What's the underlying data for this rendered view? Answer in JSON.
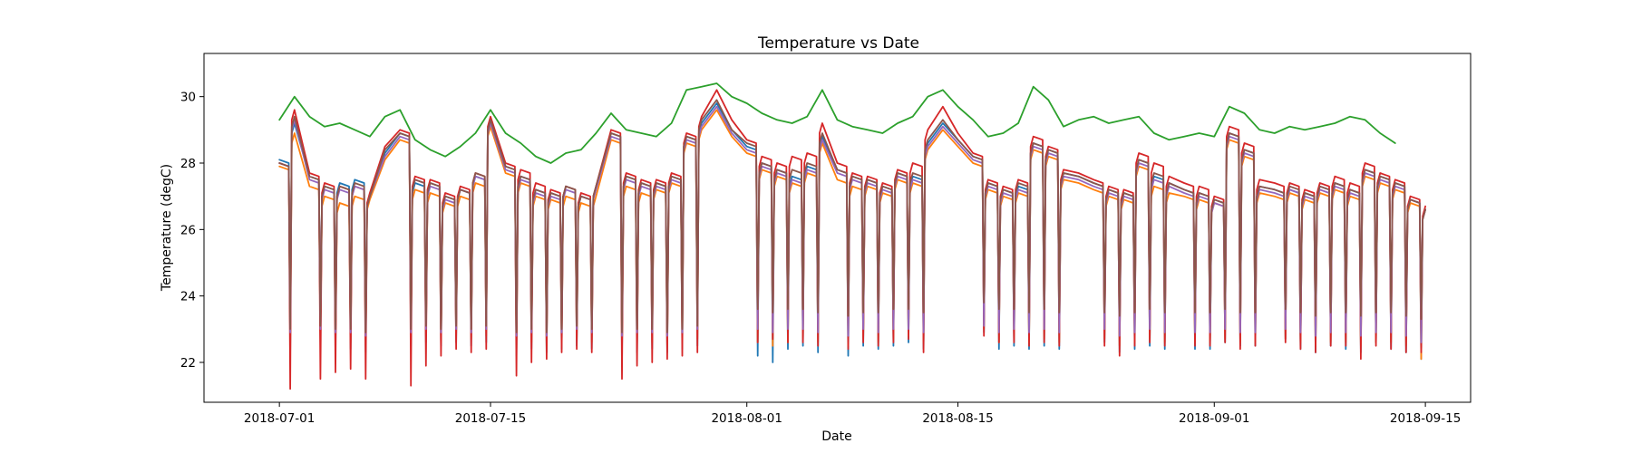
{
  "chart_data": {
    "type": "line",
    "title": "Temperature vs Date",
    "xlabel": "Date",
    "ylabel": "Temperature (degC)",
    "xlim": [
      "2018-06-26",
      "2018-09-18"
    ],
    "ylim": [
      20.8,
      31.3
    ],
    "grid": false,
    "x_ticks": [
      "2018-07-01",
      "2018-07-15",
      "2018-08-01",
      "2018-08-15",
      "2018-09-01",
      "2018-09-15"
    ],
    "y_ticks": [
      22,
      24,
      26,
      28,
      30
    ],
    "colors": [
      "#1f77b4",
      "#ff7f0e",
      "#2ca02c",
      "#d62728",
      "#9467bd",
      "#8c564b"
    ],
    "x": [
      "2018-07-01",
      "2018-07-02",
      "2018-07-03",
      "2018-07-04",
      "2018-07-05",
      "2018-07-06",
      "2018-07-07",
      "2018-07-08",
      "2018-07-09",
      "2018-07-10",
      "2018-07-11",
      "2018-07-12",
      "2018-07-13",
      "2018-07-14",
      "2018-07-15",
      "2018-07-16",
      "2018-07-17",
      "2018-07-18",
      "2018-07-19",
      "2018-07-20",
      "2018-07-21",
      "2018-07-22",
      "2018-07-23",
      "2018-07-24",
      "2018-07-25",
      "2018-07-26",
      "2018-07-27",
      "2018-07-28",
      "2018-07-29",
      "2018-07-30",
      "2018-07-31",
      "2018-08-01",
      "2018-08-02",
      "2018-08-03",
      "2018-08-04",
      "2018-08-05",
      "2018-08-06",
      "2018-08-07",
      "2018-08-08",
      "2018-08-09",
      "2018-08-10",
      "2018-08-11",
      "2018-08-12",
      "2018-08-13",
      "2018-08-14",
      "2018-08-15",
      "2018-08-16",
      "2018-08-17",
      "2018-08-18",
      "2018-08-19",
      "2018-08-20",
      "2018-08-21",
      "2018-08-22",
      "2018-08-23",
      "2018-08-24",
      "2018-08-25",
      "2018-08-26",
      "2018-08-27",
      "2018-08-28",
      "2018-08-29",
      "2018-08-30",
      "2018-08-31",
      "2018-09-01",
      "2018-09-02",
      "2018-09-03",
      "2018-09-04",
      "2018-09-05",
      "2018-09-06",
      "2018-09-07",
      "2018-09-08",
      "2018-09-09",
      "2018-09-10",
      "2018-09-11",
      "2018-09-12",
      "2018-09-13",
      "2018-09-14",
      "2018-09-15"
    ],
    "series": [
      {
        "values": [
          28.1,
          29.2,
          27.6,
          27.3,
          27.4,
          27.5,
          27.0,
          28.3,
          28.9,
          27.4,
          27.4,
          27.0,
          27.2,
          27.6,
          29.3,
          27.9,
          27.6,
          27.2,
          27.1,
          27.3,
          27.0,
          27.3,
          28.9,
          27.6,
          27.4,
          27.4,
          27.6,
          28.8,
          29.2,
          29.8,
          29.0,
          28.5,
          28.0,
          27.8,
          27.6,
          27.9,
          28.8,
          27.8,
          27.6,
          27.5,
          27.3,
          27.7,
          27.6,
          28.6,
          29.2,
          28.7,
          28.2,
          27.4,
          27.2,
          27.3,
          28.6,
          28.4,
          27.7,
          27.6,
          27.4,
          27.2,
          27.1,
          28.1,
          27.6,
          27.4,
          27.2,
          27.1,
          26.9,
          28.9,
          28.4,
          27.3,
          27.2,
          27.2,
          27.1,
          27.3,
          27.4,
          27.2,
          27.8,
          27.6,
          27.4,
          26.9,
          26.6
        ]
      },
      {
        "values": [
          27.9,
          28.9,
          27.3,
          27.0,
          26.8,
          27.0,
          26.9,
          28.1,
          28.7,
          27.2,
          27.1,
          26.8,
          27.0,
          27.4,
          29.1,
          27.7,
          27.4,
          27.0,
          26.9,
          27.0,
          26.8,
          27.0,
          28.7,
          27.3,
          27.1,
          27.2,
          27.4,
          28.6,
          29.0,
          29.6,
          28.8,
          28.3,
          27.8,
          27.6,
          27.4,
          27.7,
          28.6,
          27.5,
          27.3,
          27.3,
          27.1,
          27.5,
          27.4,
          28.4,
          29.0,
          28.5,
          28.0,
          27.2,
          27.0,
          27.1,
          28.4,
          28.2,
          27.5,
          27.4,
          27.2,
          27.0,
          26.9,
          27.9,
          27.3,
          27.1,
          27.0,
          26.9,
          26.8,
          28.7,
          28.2,
          27.1,
          27.0,
          27.1,
          26.9,
          27.1,
          27.2,
          27.0,
          27.6,
          27.4,
          27.2,
          26.8,
          26.6
        ]
      },
      {
        "values": [
          29.3,
          30.0,
          29.4,
          29.1,
          29.2,
          29.0,
          28.8,
          29.4,
          29.6,
          28.7,
          28.4,
          28.2,
          28.5,
          28.9,
          29.6,
          28.9,
          28.6,
          28.2,
          28.0,
          28.3,
          28.4,
          28.9,
          29.5,
          29.0,
          28.9,
          28.8,
          29.2,
          30.2,
          30.3,
          30.4,
          30.0,
          29.8,
          29.5,
          29.3,
          29.2,
          29.4,
          30.2,
          29.3,
          29.1,
          29.0,
          28.9,
          29.2,
          29.4,
          30.0,
          30.2,
          29.7,
          29.3,
          28.8,
          28.9,
          29.2,
          30.3,
          29.9,
          29.1,
          29.3,
          29.4,
          29.2,
          29.3,
          29.4,
          28.9,
          28.7,
          28.8,
          28.9,
          28.8,
          29.7,
          29.5,
          29.0,
          28.9,
          29.1,
          29.0,
          29.1,
          29.2,
          29.4,
          29.3,
          28.9,
          28.6,
          null,
          null
        ]
      },
      {
        "values": [
          28.0,
          29.6,
          27.7,
          27.4,
          27.3,
          27.3,
          27.1,
          28.5,
          29.0,
          27.6,
          27.5,
          27.1,
          27.3,
          27.7,
          29.4,
          28.0,
          27.8,
          27.4,
          27.2,
          27.3,
          27.1,
          27.3,
          29.0,
          27.7,
          27.5,
          27.5,
          27.7,
          28.9,
          29.4,
          30.2,
          29.3,
          28.7,
          28.2,
          28.0,
          28.2,
          28.3,
          29.2,
          28.0,
          27.7,
          27.6,
          27.4,
          27.8,
          28.0,
          29.0,
          29.7,
          28.9,
          28.3,
          27.5,
          27.3,
          27.5,
          28.8,
          28.5,
          27.8,
          27.7,
          27.5,
          27.3,
          27.2,
          28.3,
          28.0,
          27.6,
          27.4,
          27.3,
          27.0,
          29.1,
          28.6,
          27.5,
          27.4,
          27.4,
          27.2,
          27.4,
          27.6,
          27.4,
          28.0,
          27.7,
          27.5,
          27.0,
          26.7
        ]
      },
      {
        "values": [
          28.0,
          29.3,
          27.5,
          27.2,
          27.2,
          27.3,
          27.0,
          28.2,
          28.8,
          27.5,
          27.3,
          26.9,
          27.2,
          27.6,
          29.2,
          27.8,
          27.5,
          27.1,
          27.0,
          27.2,
          27.0,
          27.2,
          28.8,
          27.5,
          27.3,
          27.3,
          27.5,
          28.7,
          29.1,
          29.7,
          28.9,
          28.4,
          27.9,
          27.7,
          27.5,
          27.8,
          28.7,
          27.7,
          27.5,
          27.4,
          27.2,
          27.6,
          27.5,
          28.5,
          29.1,
          28.6,
          28.1,
          27.3,
          27.1,
          27.2,
          28.5,
          28.3,
          27.6,
          27.5,
          27.3,
          27.1,
          27.0,
          28.0,
          27.5,
          27.3,
          27.1,
          27.0,
          26.8,
          28.8,
          28.3,
          27.2,
          27.1,
          27.2,
          27.0,
          27.2,
          27.3,
          27.1,
          27.7,
          27.5,
          27.3,
          26.9,
          26.6
        ]
      },
      {
        "values": [
          28.0,
          29.4,
          27.6,
          27.3,
          27.3,
          27.4,
          27.0,
          28.4,
          28.9,
          27.5,
          27.4,
          27.0,
          27.2,
          27.7,
          29.3,
          27.9,
          27.6,
          27.2,
          27.1,
          27.3,
          27.0,
          27.3,
          28.9,
          27.6,
          27.4,
          27.4,
          27.6,
          28.8,
          29.3,
          29.9,
          29.0,
          28.6,
          28.0,
          27.8,
          27.8,
          28.0,
          28.9,
          27.8,
          27.6,
          27.5,
          27.3,
          27.7,
          27.7,
          28.7,
          29.3,
          28.7,
          28.2,
          27.4,
          27.2,
          27.4,
          28.6,
          28.4,
          27.7,
          27.6,
          27.4,
          27.2,
          27.1,
          28.1,
          27.7,
          27.4,
          27.2,
          27.1,
          26.9,
          28.9,
          28.4,
          27.3,
          27.2,
          27.3,
          27.1,
          27.3,
          27.4,
          27.2,
          27.8,
          27.6,
          27.4,
          26.9,
          26.6
        ]
      }
    ],
    "night_min": [
      {
        "days": [
          1,
          3,
          4,
          5,
          6,
          9,
          10,
          11,
          12,
          13,
          14,
          16,
          17,
          18,
          19,
          20,
          21,
          23,
          24,
          25,
          26,
          27,
          28,
          32,
          33,
          34,
          35,
          36,
          38,
          39,
          40,
          41,
          42,
          43,
          47,
          48,
          49,
          50,
          51,
          52,
          55,
          56,
          57,
          58,
          59,
          61,
          62,
          63,
          64,
          65,
          67,
          68,
          69,
          70,
          71,
          72,
          73,
          74,
          75,
          76
        ],
        "values": [
          22.3,
          22.6,
          22.4,
          22.4,
          22.3,
          22.5,
          22.6,
          22.5,
          22.6,
          22.5,
          22.6,
          22.2,
          22.4,
          22.3,
          22.4,
          22.5,
          22.4,
          22.2,
          22.3,
          22.4,
          22.3,
          22.4,
          22.5,
          22.2,
          22.0,
          22.4,
          22.5,
          22.3,
          22.2,
          22.5,
          22.4,
          22.5,
          22.6,
          22.4,
          22.9,
          22.4,
          22.5,
          22.4,
          22.5,
          22.4,
          22.6,
          22.3,
          22.4,
          22.5,
          22.4,
          22.4,
          22.4,
          22.6,
          22.5,
          22.5,
          22.7,
          22.4,
          22.3,
          22.5,
          22.4,
          22.3,
          22.6,
          22.4,
          22.3,
          22.1
        ]
      },
      {
        "days": [
          1,
          3,
          4,
          5,
          6,
          9,
          10,
          11,
          12,
          13,
          14,
          16,
          17,
          18,
          19,
          20,
          21,
          23,
          24,
          25,
          26,
          27,
          28,
          32,
          33,
          34,
          35,
          36,
          38,
          39,
          40,
          41,
          42,
          43,
          47,
          48,
          49,
          50,
          51,
          52,
          55,
          56,
          57,
          58,
          59,
          61,
          62,
          63,
          64,
          65,
          67,
          68,
          69,
          70,
          71,
          72,
          73,
          74,
          75,
          76
        ],
        "values": [
          22.5,
          22.7,
          22.6,
          22.6,
          22.5,
          22.7,
          22.8,
          22.6,
          22.8,
          22.7,
          22.8,
          22.4,
          22.6,
          22.5,
          22.6,
          22.7,
          22.6,
          22.4,
          22.5,
          22.6,
          22.5,
          22.6,
          22.7,
          22.6,
          22.5,
          22.6,
          22.7,
          22.6,
          22.5,
          22.7,
          22.6,
          22.7,
          22.8,
          22.6,
          23.0,
          22.6,
          22.7,
          22.6,
          22.7,
          22.6,
          22.7,
          22.5,
          22.6,
          22.7,
          22.6,
          22.6,
          22.6,
          22.7,
          22.6,
          22.6,
          22.7,
          22.6,
          22.5,
          22.6,
          22.6,
          22.5,
          22.6,
          22.6,
          22.5,
          22.1
        ]
      },
      null,
      {
        "days": [
          1,
          3,
          4,
          5,
          6,
          9,
          10,
          11,
          12,
          13,
          14,
          16,
          17,
          18,
          19,
          20,
          21,
          23,
          24,
          25,
          26,
          27,
          28,
          32,
          33,
          34,
          35,
          36,
          38,
          39,
          40,
          41,
          42,
          43,
          47,
          48,
          49,
          50,
          51,
          52,
          55,
          56,
          57,
          58,
          59,
          61,
          62,
          63,
          64,
          65,
          67,
          68,
          69,
          70,
          71,
          72,
          73,
          74,
          75,
          76
        ],
        "values": [
          21.2,
          21.5,
          21.7,
          21.8,
          21.5,
          21.3,
          21.9,
          22.2,
          22.4,
          22.3,
          22.4,
          21.6,
          22.0,
          22.1,
          22.3,
          22.4,
          22.3,
          21.5,
          21.9,
          22.0,
          22.1,
          22.2,
          22.3,
          22.6,
          22.7,
          22.6,
          22.6,
          22.5,
          22.4,
          22.6,
          22.5,
          22.6,
          22.7,
          22.3,
          22.8,
          22.6,
          22.6,
          22.5,
          22.6,
          22.5,
          22.5,
          22.2,
          22.5,
          22.6,
          22.5,
          22.5,
          22.5,
          22.6,
          22.4,
          22.5,
          22.6,
          22.4,
          22.3,
          22.5,
          22.5,
          22.1,
          22.5,
          22.4,
          22.3,
          22.3
        ]
      },
      {
        "days": [
          1,
          3,
          4,
          5,
          6,
          9,
          10,
          11,
          12,
          13,
          14,
          16,
          17,
          18,
          19,
          20,
          21,
          23,
          24,
          25,
          26,
          27,
          28,
          32,
          33,
          34,
          35,
          36,
          38,
          39,
          40,
          41,
          42,
          43,
          47,
          48,
          49,
          50,
          51,
          52,
          55,
          56,
          57,
          58,
          59,
          61,
          62,
          63,
          64,
          65,
          67,
          68,
          69,
          70,
          71,
          72,
          73,
          74,
          75,
          76
        ],
        "values": [
          22.9,
          23.0,
          22.9,
          22.9,
          22.8,
          22.9,
          23.0,
          22.9,
          23.0,
          22.9,
          23.0,
          22.8,
          22.9,
          22.8,
          22.9,
          23.0,
          22.9,
          22.8,
          22.9,
          22.9,
          22.8,
          22.9,
          23.0,
          23.0,
          22.9,
          23.0,
          23.0,
          22.9,
          22.8,
          23.0,
          22.9,
          23.0,
          23.0,
          22.9,
          23.1,
          22.9,
          23.0,
          22.9,
          23.0,
          22.9,
          23.0,
          22.8,
          22.9,
          23.0,
          22.9,
          22.9,
          22.9,
          23.0,
          22.9,
          22.9,
          23.0,
          22.9,
          22.8,
          22.9,
          22.9,
          22.8,
          22.9,
          22.9,
          22.8,
          22.6
        ]
      },
      {
        "days": [
          1,
          3,
          4,
          5,
          6,
          9,
          10,
          11,
          12,
          13,
          14,
          16,
          17,
          18,
          19,
          20,
          21,
          23,
          24,
          25,
          26,
          27,
          28,
          32,
          33,
          34,
          35,
          36,
          38,
          39,
          40,
          41,
          42,
          43,
          47,
          48,
          49,
          50,
          51,
          52,
          55,
          56,
          57,
          58,
          59,
          61,
          62,
          63,
          64,
          65,
          67,
          68,
          69,
          70,
          71,
          72,
          73,
          74,
          75,
          76
        ],
        "values": [
          23.0,
          23.1,
          23.0,
          23.0,
          22.9,
          23.0,
          23.1,
          23.0,
          23.1,
          23.0,
          23.1,
          22.9,
          23.0,
          22.9,
          23.0,
          23.1,
          23.0,
          22.9,
          23.0,
          23.0,
          22.9,
          23.0,
          23.1,
          23.6,
          23.5,
          23.6,
          23.6,
          23.5,
          23.4,
          23.5,
          23.5,
          23.6,
          23.6,
          23.5,
          23.8,
          23.6,
          23.6,
          23.5,
          23.6,
          23.5,
          23.5,
          23.4,
          23.5,
          23.6,
          23.5,
          23.5,
          23.5,
          23.6,
          23.5,
          23.5,
          23.6,
          23.5,
          23.4,
          23.5,
          23.5,
          23.4,
          23.5,
          23.5,
          23.4,
          23.3
        ]
      }
    ]
  }
}
